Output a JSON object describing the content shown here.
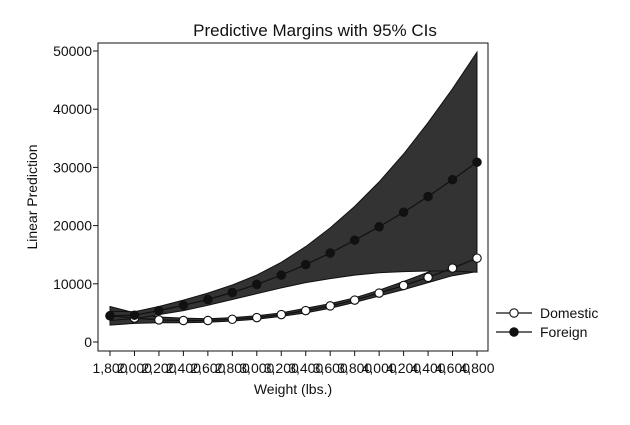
{
  "chart_data": {
    "type": "line",
    "title": "Predictive Margins with 95% CIs",
    "xlabel": "Weight (lbs.)",
    "ylabel": "Linear Prediction",
    "x": [
      1800,
      2000,
      2200,
      2400,
      2600,
      2800,
      3000,
      3200,
      3400,
      3600,
      3800,
      4000,
      4200,
      4400,
      4600,
      4800
    ],
    "x_tick_labels": [
      "1,800",
      "2,000",
      "2,200",
      "2,400",
      "2,600",
      "2,800",
      "3,000",
      "3,200",
      "3,400",
      "3,600",
      "3,800",
      "4,000",
      "4,200",
      "4,400",
      "4,600",
      "4,800"
    ],
    "xlim": [
      1800,
      4800
    ],
    "ylim": [
      0,
      50000
    ],
    "y_ticks": [
      0,
      10000,
      20000,
      30000,
      40000,
      50000
    ],
    "y_tick_labels": [
      "0",
      "10000",
      "20000",
      "30000",
      "40000",
      "50000"
    ],
    "grid": false,
    "legend_position": "right",
    "series": [
      {
        "name": "Domestic",
        "marker": "hollow-circle",
        "values": [
          4500,
          4100,
          3800,
          3700,
          3700,
          3900,
          4200,
          4700,
          5400,
          6200,
          7200,
          8400,
          9700,
          11100,
          12700,
          14400
        ],
        "ci_lower": [
          2900,
          3200,
          3300,
          3300,
          3400,
          3600,
          3900,
          4400,
          5000,
          5800,
          6800,
          7900,
          9000,
          10200,
          11400,
          12100
        ],
        "ci_upper": [
          6100,
          5000,
          4300,
          4100,
          4000,
          4200,
          4500,
          5000,
          5800,
          6600,
          7600,
          8900,
          10400,
          12000,
          14000,
          16700
        ]
      },
      {
        "name": "Foreign",
        "marker": "filled-circle",
        "values": [
          4500,
          4600,
          5400,
          6300,
          7300,
          8500,
          9900,
          11500,
          13300,
          15300,
          17500,
          19800,
          22300,
          25000,
          27900,
          30900
        ],
        "ci_lower": [
          3700,
          4000,
          4700,
          5400,
          6300,
          7300,
          8300,
          9300,
          10200,
          10900,
          11500,
          11900,
          12100,
          12200,
          12200,
          12000
        ],
        "ci_upper": [
          5300,
          5200,
          6100,
          7200,
          8400,
          9800,
          11500,
          13700,
          16400,
          19600,
          23300,
          27500,
          32300,
          37700,
          43500,
          49800
        ]
      }
    ]
  },
  "colors": {
    "ci_fill": "#333333",
    "line": "#111111",
    "axis": "#111111",
    "background": "#ffffff"
  }
}
